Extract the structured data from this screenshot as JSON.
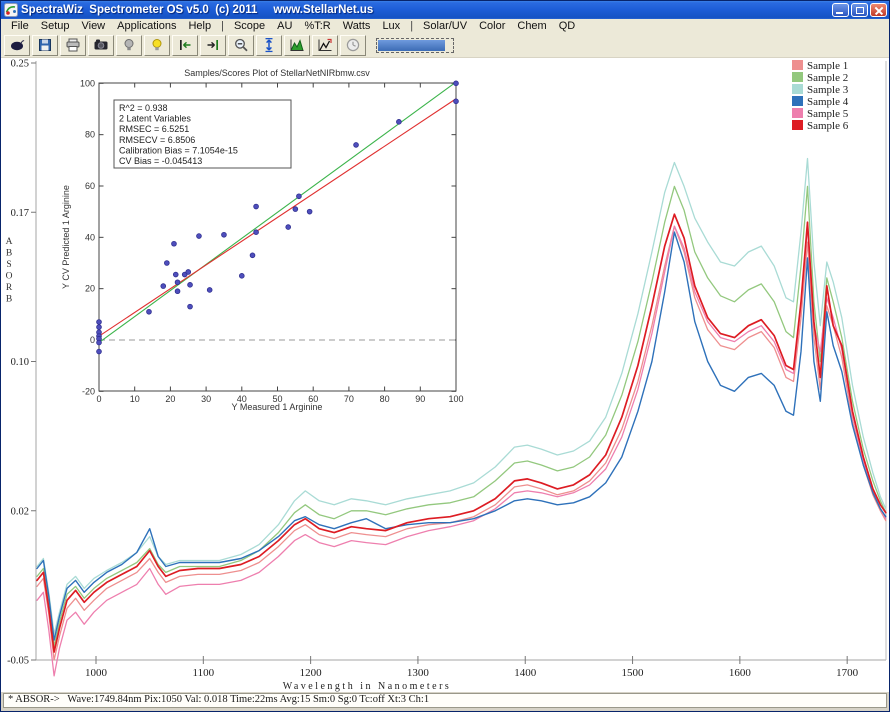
{
  "window": {
    "title": "SpectraWiz  Spectrometer OS v5.0  (c) 2011     www.StellarNet.us"
  },
  "menu": {
    "items": [
      "File",
      "Setup",
      "View",
      "Applications",
      "Help",
      "|",
      "Scope",
      "AU",
      "%T:R",
      "Watts",
      "Lux",
      "|",
      "Solar/UV",
      "Color",
      "Chem",
      "QD"
    ]
  },
  "toolbar": {
    "buttons": [
      {
        "name": "acquire",
        "icon": "mouse"
      },
      {
        "name": "save",
        "icon": "floppy"
      },
      {
        "name": "print",
        "icon": "printer"
      },
      {
        "name": "snapshot",
        "icon": "camera"
      },
      {
        "name": "lamp-off",
        "icon": "bulb-gray"
      },
      {
        "name": "lamp-on",
        "icon": "bulb-yellow"
      },
      {
        "name": "range-start",
        "icon": "arrow-bar-left"
      },
      {
        "name": "range-end",
        "icon": "arrow-bar-right"
      },
      {
        "name": "zoom-out",
        "icon": "magnifier-minus"
      },
      {
        "name": "autoscale-y",
        "icon": "vertical-arrows"
      },
      {
        "name": "peak-view",
        "icon": "green-peak"
      },
      {
        "name": "peak-track",
        "icon": "peak-arrow"
      },
      {
        "name": "timer",
        "icon": "clock"
      }
    ],
    "progress_percent": 90
  },
  "legend": {
    "items": [
      {
        "label": "Sample 1",
        "color": "#ee8f8f"
      },
      {
        "label": "Sample 2",
        "color": "#93c87e"
      },
      {
        "label": "Sample 3",
        "color": "#a9dbd5"
      },
      {
        "label": "Sample 4",
        "color": "#2e71ba"
      },
      {
        "label": "Sample 5",
        "color": "#ee7fae"
      },
      {
        "label": "Sample 6",
        "color": "#dd1c23"
      }
    ]
  },
  "status_bar": {
    "text": "* ABSOR->   Wave:1749.84nm Pix:1050 Val: 0.018 Time:22ms Avg:15 Sm:0 Sg:0 Tc:off Xt:3 Ch:1"
  },
  "chart_data": [
    {
      "type": "line",
      "title": "",
      "xlabel": "Wavelength in Nanometers",
      "ylabel": "ABSORB",
      "xlim": [
        944,
        1736
      ],
      "ylim": [
        -0.05,
        0.25
      ],
      "x_ticks": [
        1000,
        1100,
        1200,
        1300,
        1400,
        1500,
        1600,
        1700
      ],
      "y_ticks": [
        {
          "v": 0.25,
          "label": "0.25"
        },
        {
          "v": 0.175,
          "label": "0.17"
        },
        {
          "v": 0.1,
          "label": "0.10"
        },
        {
          "v": 0.025,
          "label": "0.02"
        },
        {
          "v": -0.05,
          "label": "-0.05"
        }
      ],
      "grid": false,
      "legend_position": "top-right",
      "wavelengths": [
        945,
        951,
        956,
        961,
        966,
        973,
        981,
        989,
        998,
        1010,
        1024,
        1038,
        1050,
        1058,
        1065,
        1078,
        1095,
        1115,
        1135,
        1152,
        1170,
        1185,
        1195,
        1208,
        1222,
        1238,
        1252,
        1270,
        1290,
        1310,
        1330,
        1352,
        1372,
        1390,
        1402,
        1415,
        1430,
        1445,
        1460,
        1475,
        1490,
        1505,
        1518,
        1530,
        1539,
        1548,
        1558,
        1570,
        1582,
        1595,
        1608,
        1620,
        1632,
        1643,
        1650,
        1657,
        1663,
        1669,
        1675,
        1681,
        1687,
        1695,
        1705,
        1715,
        1724,
        1731,
        1736
      ],
      "series": [
        {
          "name": "Sample 3",
          "color": "#a9dbd5",
          "width": 1.3,
          "values": [
            -0.003,
            0.001,
            -0.016,
            -0.037,
            -0.026,
            -0.012,
            -0.008,
            -0.014,
            -0.009,
            -0.005,
            -0.001,
            0.004,
            0.012,
            0.002,
            -0.002,
            0.0,
            0.0,
            0.0,
            0.003,
            0.008,
            0.018,
            0.03,
            0.035,
            0.03,
            0.028,
            0.031,
            0.03,
            0.028,
            0.031,
            0.033,
            0.035,
            0.039,
            0.047,
            0.057,
            0.058,
            0.056,
            0.053,
            0.055,
            0.06,
            0.072,
            0.094,
            0.124,
            0.155,
            0.185,
            0.2,
            0.188,
            0.172,
            0.16,
            0.15,
            0.148,
            0.155,
            0.158,
            0.148,
            0.132,
            0.13,
            0.165,
            0.202,
            0.15,
            0.118,
            0.15,
            0.14,
            0.122,
            0.088,
            0.062,
            0.044,
            0.032,
            0.026
          ]
        },
        {
          "name": "Sample 2",
          "color": "#93c87e",
          "width": 1.3,
          "values": [
            -0.008,
            -0.004,
            -0.021,
            -0.043,
            -0.031,
            -0.017,
            -0.013,
            -0.019,
            -0.014,
            -0.009,
            -0.005,
            -0.001,
            0.006,
            -0.002,
            -0.006,
            -0.003,
            -0.003,
            -0.003,
            0.0,
            0.005,
            0.014,
            0.024,
            0.028,
            0.023,
            0.021,
            0.025,
            0.025,
            0.023,
            0.026,
            0.028,
            0.029,
            0.032,
            0.04,
            0.049,
            0.05,
            0.048,
            0.045,
            0.047,
            0.052,
            0.063,
            0.083,
            0.11,
            0.14,
            0.17,
            0.188,
            0.176,
            0.155,
            0.142,
            0.133,
            0.13,
            0.136,
            0.139,
            0.13,
            0.115,
            0.112,
            0.148,
            0.188,
            0.13,
            0.1,
            0.142,
            0.13,
            0.112,
            0.08,
            0.056,
            0.04,
            0.03,
            0.024
          ]
        },
        {
          "name": "Sample 1",
          "color": "#ee8f8f",
          "width": 1.3,
          "values": [
            -0.013,
            -0.009,
            -0.027,
            -0.05,
            -0.038,
            -0.024,
            -0.019,
            -0.025,
            -0.02,
            -0.014,
            -0.01,
            -0.006,
            0.001,
            -0.006,
            -0.011,
            -0.008,
            -0.007,
            -0.007,
            -0.005,
            -0.001,
            0.007,
            0.015,
            0.018,
            0.013,
            0.011,
            0.014,
            0.013,
            0.012,
            0.016,
            0.018,
            0.019,
            0.022,
            0.028,
            0.037,
            0.038,
            0.036,
            0.033,
            0.035,
            0.04,
            0.049,
            0.066,
            0.09,
            0.118,
            0.148,
            0.168,
            0.155,
            0.132,
            0.116,
            0.108,
            0.106,
            0.112,
            0.115,
            0.107,
            0.092,
            0.09,
            0.122,
            0.16,
            0.112,
            0.086,
            0.128,
            0.118,
            0.102,
            0.07,
            0.048,
            0.033,
            0.025,
            0.02
          ]
        },
        {
          "name": "Sample 5",
          "color": "#ee7fae",
          "width": 1.3,
          "values": [
            -0.02,
            -0.016,
            -0.035,
            -0.058,
            -0.044,
            -0.03,
            -0.026,
            -0.032,
            -0.026,
            -0.02,
            -0.016,
            -0.012,
            -0.004,
            -0.012,
            -0.017,
            -0.013,
            -0.012,
            -0.012,
            -0.01,
            -0.006,
            0.002,
            0.01,
            0.013,
            0.009,
            0.007,
            0.01,
            0.009,
            0.008,
            0.012,
            0.015,
            0.017,
            0.02,
            0.026,
            0.034,
            0.035,
            0.034,
            0.032,
            0.034,
            0.038,
            0.046,
            0.062,
            0.086,
            0.114,
            0.145,
            0.168,
            0.157,
            0.135,
            0.12,
            0.112,
            0.11,
            0.115,
            0.118,
            0.11,
            0.096,
            0.094,
            0.128,
            0.168,
            0.118,
            0.105,
            0.132,
            0.122,
            0.106,
            0.073,
            0.05,
            0.035,
            0.026,
            0.021
          ]
        },
        {
          "name": "Sample 4",
          "color": "#2e71ba",
          "width": 1.4,
          "values": [
            -0.004,
            0.0,
            -0.018,
            -0.04,
            -0.028,
            -0.014,
            -0.01,
            -0.016,
            -0.011,
            -0.006,
            -0.002,
            0.004,
            0.016,
            0.002,
            -0.003,
            -0.001,
            -0.001,
            -0.001,
            0.001,
            0.005,
            0.012,
            0.02,
            0.022,
            0.018,
            0.016,
            0.019,
            0.021,
            0.016,
            0.018,
            0.019,
            0.019,
            0.021,
            0.025,
            0.03,
            0.031,
            0.03,
            0.028,
            0.029,
            0.032,
            0.039,
            0.052,
            0.075,
            0.1,
            0.135,
            0.165,
            0.15,
            0.12,
            0.1,
            0.088,
            0.085,
            0.092,
            0.094,
            0.088,
            0.075,
            0.073,
            0.105,
            0.152,
            0.1,
            0.08,
            0.125,
            0.108,
            0.095,
            0.068,
            0.048,
            0.034,
            0.026,
            0.022
          ]
        },
        {
          "name": "Sample 6",
          "color": "#dd1c23",
          "width": 1.7,
          "values": [
            -0.01,
            -0.006,
            -0.024,
            -0.046,
            -0.034,
            -0.02,
            -0.015,
            -0.021,
            -0.016,
            -0.011,
            -0.007,
            -0.003,
            0.005,
            -0.003,
            -0.008,
            -0.005,
            -0.004,
            -0.004,
            -0.002,
            0.002,
            0.01,
            0.018,
            0.021,
            0.016,
            0.014,
            0.017,
            0.016,
            0.015,
            0.019,
            0.021,
            0.022,
            0.025,
            0.031,
            0.04,
            0.041,
            0.039,
            0.036,
            0.038,
            0.043,
            0.053,
            0.072,
            0.098,
            0.128,
            0.158,
            0.174,
            0.162,
            0.138,
            0.122,
            0.114,
            0.112,
            0.118,
            0.121,
            0.113,
            0.098,
            0.096,
            0.13,
            0.17,
            0.12,
            0.092,
            0.138,
            0.118,
            0.108,
            0.075,
            0.052,
            0.036,
            0.028,
            0.024
          ]
        }
      ]
    },
    {
      "type": "scatter",
      "title": "Samples/Scores Plot of StellarNetNIRbmw.csv",
      "xlabel": "Y Measured 1 Arginine",
      "ylabel": "Y CV Predicted 1 Arginine",
      "xlim": [
        0,
        100
      ],
      "ylim": [
        -20,
        100
      ],
      "x_ticks": [
        0,
        10,
        20,
        30,
        40,
        50,
        60,
        70,
        80,
        90,
        100
      ],
      "y_ticks": [
        -20,
        0,
        20,
        40,
        60,
        80,
        100
      ],
      "point_color": "#4e4ebc",
      "points": [
        [
          0,
          7
        ],
        [
          0,
          5
        ],
        [
          0,
          3
        ],
        [
          0,
          1.5
        ],
        [
          0,
          0.5
        ],
        [
          0,
          -1
        ],
        [
          0,
          -4.5
        ],
        [
          14,
          11
        ],
        [
          18,
          21
        ],
        [
          19,
          30
        ],
        [
          21,
          37.5
        ],
        [
          21.5,
          25.5
        ],
        [
          22,
          22.5
        ],
        [
          22,
          19
        ],
        [
          24,
          25.5
        ],
        [
          25,
          26.5
        ],
        [
          25.5,
          21.5
        ],
        [
          25.5,
          13
        ],
        [
          28,
          40.5
        ],
        [
          31,
          19.5
        ],
        [
          35,
          41
        ],
        [
          40,
          25
        ],
        [
          43,
          33
        ],
        [
          44,
          52
        ],
        [
          44,
          42
        ],
        [
          53,
          44
        ],
        [
          55,
          51
        ],
        [
          56,
          56
        ],
        [
          59,
          50
        ],
        [
          72,
          76
        ],
        [
          84,
          85
        ],
        [
          100,
          100
        ],
        [
          100,
          93
        ]
      ],
      "fit_lines": [
        {
          "name": "calibration-fit",
          "color": "#3cb44b",
          "from": [
            0,
            -1
          ],
          "to": [
            100,
            100.5
          ]
        },
        {
          "name": "cv-fit",
          "color": "#e03030",
          "from": [
            0,
            1.5
          ],
          "to": [
            100,
            94
          ]
        }
      ],
      "zero_line": true,
      "stats_box": {
        "lines": [
          "R^2 = 0.938",
          "2 Latent Variables",
          "RMSEC = 6.5251",
          "RMSECV = 6.8506",
          "Calibration Bias = 7.1054e-15",
          "CV Bias = -0.045413"
        ]
      }
    }
  ]
}
